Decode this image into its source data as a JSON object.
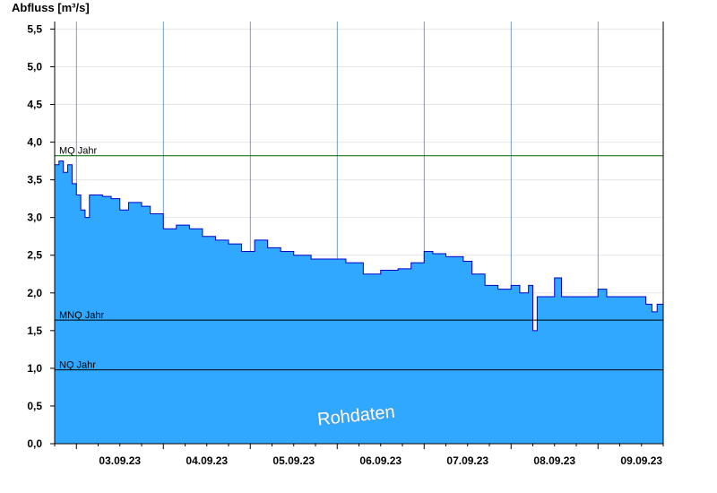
{
  "chart_data": {
    "type": "area",
    "ylabel": "Abfluss [m³/s]",
    "ylim": [
      0,
      5.6
    ],
    "yticks": [
      0,
      0.5,
      1.0,
      1.5,
      2.0,
      2.5,
      3.0,
      3.5,
      4.0,
      4.5,
      5.0,
      5.5
    ],
    "ytick_labels": [
      "0,0",
      "0,5",
      "1,0",
      "1,5",
      "2,0",
      "2,5",
      "3,0",
      "3,5",
      "4,0",
      "4,5",
      "5,0",
      "5,5"
    ],
    "x_start_day": 2.75,
    "x_end_day": 9.75,
    "day_boundaries": [
      3,
      4,
      5,
      6,
      7,
      8,
      9
    ],
    "x_labels": [
      "03.09.23",
      "04.09.23",
      "05.09.23",
      "06.09.23",
      "07.09.23",
      "08.09.23",
      "09.09.23"
    ],
    "grid": true,
    "fill_color": "#30a8ff",
    "line_color": "#0000cc",
    "reference_lines": [
      {
        "name": "MQ Jahr",
        "value": 3.82,
        "color": "#006400"
      },
      {
        "name": "MNQ Jahr",
        "value": 1.64,
        "color": "#000000"
      },
      {
        "name": "NQ Jahr",
        "value": 0.98,
        "color": "#000000"
      }
    ],
    "watermark": "Rohdaten",
    "series": [
      {
        "values": [
          [
            2.75,
            3.7
          ],
          [
            2.8,
            3.75
          ],
          [
            2.85,
            3.6
          ],
          [
            2.9,
            3.7
          ],
          [
            2.95,
            3.45
          ],
          [
            3.0,
            3.3
          ],
          [
            3.05,
            3.1
          ],
          [
            3.1,
            3.0
          ],
          [
            3.15,
            3.3
          ],
          [
            3.2,
            3.3
          ],
          [
            3.3,
            3.28
          ],
          [
            3.4,
            3.25
          ],
          [
            3.5,
            3.1
          ],
          [
            3.6,
            3.2
          ],
          [
            3.75,
            3.15
          ],
          [
            3.85,
            3.05
          ],
          [
            4.0,
            2.85
          ],
          [
            4.15,
            2.9
          ],
          [
            4.3,
            2.85
          ],
          [
            4.45,
            2.75
          ],
          [
            4.6,
            2.7
          ],
          [
            4.75,
            2.65
          ],
          [
            4.9,
            2.55
          ],
          [
            5.05,
            2.7
          ],
          [
            5.2,
            2.6
          ],
          [
            5.35,
            2.55
          ],
          [
            5.5,
            2.5
          ],
          [
            5.7,
            2.45
          ],
          [
            5.9,
            2.45
          ],
          [
            6.1,
            2.4
          ],
          [
            6.3,
            2.25
          ],
          [
            6.5,
            2.3
          ],
          [
            6.7,
            2.32
          ],
          [
            6.85,
            2.4
          ],
          [
            7.0,
            2.55
          ],
          [
            7.1,
            2.52
          ],
          [
            7.25,
            2.48
          ],
          [
            7.45,
            2.42
          ],
          [
            7.55,
            2.25
          ],
          [
            7.7,
            2.1
          ],
          [
            7.85,
            2.05
          ],
          [
            8.0,
            2.1
          ],
          [
            8.1,
            2.0
          ],
          [
            8.2,
            2.1
          ],
          [
            8.25,
            1.5
          ],
          [
            8.3,
            1.95
          ],
          [
            8.45,
            1.95
          ],
          [
            8.5,
            2.2
          ],
          [
            8.58,
            1.95
          ],
          [
            8.75,
            1.95
          ],
          [
            8.9,
            1.95
          ],
          [
            9.0,
            2.05
          ],
          [
            9.1,
            1.95
          ],
          [
            9.3,
            1.95
          ],
          [
            9.45,
            1.95
          ],
          [
            9.55,
            1.85
          ],
          [
            9.62,
            1.75
          ],
          [
            9.68,
            1.85
          ],
          [
            9.75,
            1.95
          ]
        ]
      }
    ]
  }
}
